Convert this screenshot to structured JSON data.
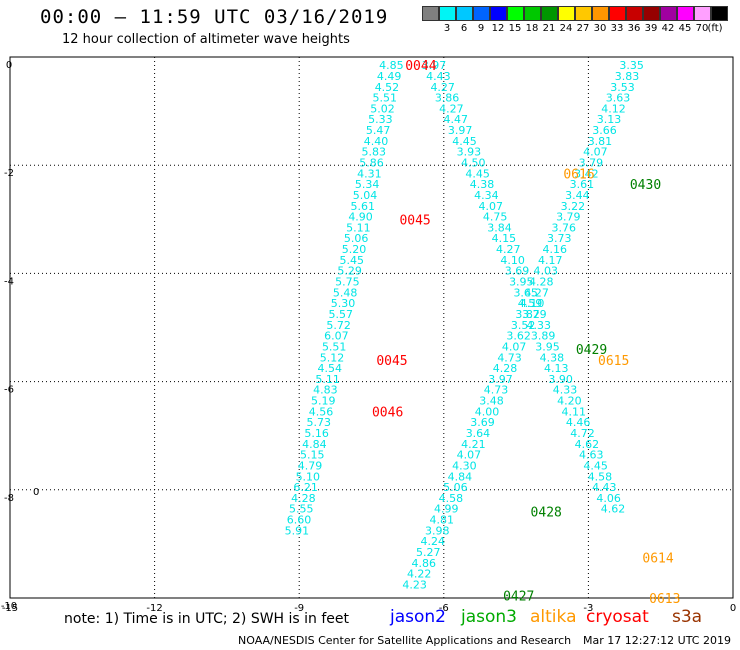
{
  "header": {
    "title": "00:00 — 11:59 UTC 03/16/2019",
    "subtitle": "12 hour collection of altimeter wave heights"
  },
  "legend": {
    "unit_label": "(ft)",
    "scale": [
      {
        "label": "",
        "color": "#808080"
      },
      {
        "label": "3",
        "color": "#00f5f5"
      },
      {
        "label": "6",
        "color": "#00c8ff"
      },
      {
        "label": "9",
        "color": "#0064ff"
      },
      {
        "label": "12",
        "color": "#0000ff"
      },
      {
        "label": "15",
        "color": "#00ff00"
      },
      {
        "label": "18",
        "color": "#00c800"
      },
      {
        "label": "21",
        "color": "#009600"
      },
      {
        "label": "24",
        "color": "#ffff00"
      },
      {
        "label": "27",
        "color": "#ffc800"
      },
      {
        "label": "30",
        "color": "#ff9600"
      },
      {
        "label": "33",
        "color": "#ff0000"
      },
      {
        "label": "36",
        "color": "#c80000"
      },
      {
        "label": "39",
        "color": "#960000"
      },
      {
        "label": "42",
        "color": "#a000a0"
      },
      {
        "label": "45",
        "color": "#ff00ff"
      },
      {
        "label": "70",
        "color": "#ffa0ff"
      },
      {
        "label": "",
        "color": "#000000"
      }
    ]
  },
  "footer": {
    "note": "note:  1) Time is in UTC; 2) SWH is in feet",
    "satellites": [
      {
        "name": "jason2",
        "color": "#0000ff"
      },
      {
        "name": "jason3",
        "color": "#00aa00"
      },
      {
        "name": "altika",
        "color": "#ff9900"
      },
      {
        "name": "cryosat",
        "color": "#ff0000"
      },
      {
        "name": "s3a",
        "color": "#993300"
      }
    ],
    "credit": "NOAA/NESDIS Center for Satellite Applications and Research",
    "timestamp": "Mar 17 12:27:12 UTC 2019"
  },
  "chart_data": {
    "type": "scatter",
    "title": "00:00 — 11:59 UTC 03/16/2019",
    "subtitle": "12 hour collection of altimeter wave heights",
    "xlim": [
      -15,
      0
    ],
    "ylim": [
      -10,
      0
    ],
    "x_ticks": [
      "-15",
      "-12",
      "-9",
      "-6",
      "-3",
      "0"
    ],
    "y_ticks": [
      "0",
      "-2",
      "-4",
      "-6",
      "-8",
      "-10"
    ],
    "grid": true,
    "value_color": "#00e5e5",
    "track_labels": [
      {
        "text": "0044",
        "x": -6.8,
        "y": -0.15,
        "sat": "cryosat",
        "color": "#ff0000"
      },
      {
        "text": "0045",
        "x": -6.92,
        "y": -3.0,
        "sat": "cryosat",
        "color": "#ff0000"
      },
      {
        "text": "0045",
        "x": -7.4,
        "y": -5.6,
        "sat": "cryosat",
        "color": "#ff0000"
      },
      {
        "text": "0046",
        "x": -7.49,
        "y": -6.55,
        "sat": "cryosat",
        "color": "#ff0000"
      },
      {
        "text": "0616",
        "x": -3.52,
        "y": -2.15,
        "sat": "altika",
        "color": "#ff9900"
      },
      {
        "text": "0615",
        "x": -2.8,
        "y": -5.6,
        "sat": "altika",
        "color": "#ff9900"
      },
      {
        "text": "0614",
        "x": -1.88,
        "y": -9.25,
        "sat": "altika",
        "color": "#ff9900"
      },
      {
        "text": "0613",
        "x": -1.74,
        "y": -10.0,
        "sat": "altika",
        "color": "#ff9900"
      },
      {
        "text": "0430",
        "x": -2.14,
        "y": -2.35,
        "sat": "jason3",
        "color": "#008000"
      },
      {
        "text": "0429",
        "x": -3.26,
        "y": -5.4,
        "sat": "jason3",
        "color": "#008000"
      },
      {
        "text": "0428",
        "x": -4.2,
        "y": -8.4,
        "sat": "jason3",
        "color": "#008000"
      },
      {
        "text": "0427",
        "x": -4.77,
        "y": -9.95,
        "sat": "jason3",
        "color": "#008000"
      }
    ],
    "tracks": [
      {
        "name": "cryosat 0044-0046",
        "y": [
          -0.15,
          -0.35,
          -0.55,
          -0.75,
          -0.95,
          -1.15,
          -1.35,
          -1.55,
          -1.75,
          -1.95,
          -2.15,
          -2.35,
          -2.55,
          -2.75,
          -2.95,
          -3.15,
          -3.35,
          -3.55,
          -3.75,
          -3.95,
          -4.15,
          -4.35,
          -4.55,
          -4.75,
          -4.95,
          -5.15,
          -5.35,
          -5.55,
          -5.75,
          -5.95,
          -6.15,
          -6.35,
          -6.55,
          -6.75,
          -6.95,
          -7.15,
          -7.35,
          -7.55,
          -7.75,
          -7.95,
          -8.15,
          -8.35,
          -8.55,
          -8.75,
          -8.95,
          -9.15,
          -9.35,
          -9.55,
          -9.75,
          -9.95
        ],
        "values": [
          "4.85",
          "4.49",
          "4.52",
          "5.51",
          "5.02",
          "5.33",
          "5.47",
          "4.40",
          "5.83",
          "5.86",
          "4.31",
          "5.34",
          "5.04",
          "5.61",
          "4.90",
          "5.11",
          "5.06",
          "5.20",
          "5.45",
          "5.29",
          "5.75",
          "5.48",
          "5.30",
          "5.57",
          "5.72",
          "6.07",
          "5.51",
          "5.12",
          "4.54",
          "5.11",
          "4.83",
          "5.19",
          "4.56",
          "5.73",
          "5.16",
          "4.84",
          "5.15",
          "4.79",
          "5.10",
          "6.21",
          "4.28",
          "5.55",
          "6.60",
          "5.91",
          "",
          "",
          "",
          "",
          "",
          ""
        ]
      },
      {
        "name": "altika 0616-0613",
        "y": [
          -0.15,
          -0.35,
          -0.55,
          -0.75,
          -0.95,
          -1.15,
          -1.35,
          -1.55,
          -1.75,
          -1.95,
          -2.15,
          -2.35,
          -2.55,
          -2.75,
          -2.95,
          -3.15,
          -3.35,
          -3.55,
          -3.75,
          -3.95,
          -4.15,
          -4.35,
          -4.55,
          -4.75,
          -4.95,
          -5.15,
          -5.35,
          -5.55,
          -5.75,
          -5.95,
          -6.15,
          -6.35,
          -6.55,
          -6.75,
          -6.95,
          -7.15,
          -7.35,
          -7.55,
          -7.75,
          -7.95,
          -8.15,
          -8.35,
          -8.55,
          -8.75,
          -8.95,
          -9.15,
          -9.35,
          -9.55,
          -9.75,
          -9.95
        ],
        "values": [
          "3.97",
          "4.43",
          "4.27",
          "3.86",
          "4.27",
          "4.47",
          "3.97",
          "4.45",
          "3.93",
          "4.50",
          "4.45",
          "4.38",
          "4.34",
          "4.07",
          "4.75",
          "3.84",
          "4.15",
          "4.27",
          "4.10",
          "3.69",
          "3.95",
          "3.65",
          "4.59",
          "3.79",
          "4.33",
          "3.89",
          "3.95",
          "4.38",
          "4.13",
          "3.90",
          "4.33",
          "4.20",
          "4.11",
          "4.46",
          "4.72",
          "4.62",
          "4.63",
          "4.45",
          "4.58",
          "4.43",
          "4.06",
          "4.62",
          "",
          "",
          "",
          "",
          "",
          "",
          "",
          ""
        ]
      },
      {
        "name": "jason3 0430-0427",
        "y": [
          -0.15,
          -0.35,
          -0.55,
          -0.75,
          -0.95,
          -1.15,
          -1.35,
          -1.55,
          -1.75,
          -1.95,
          -2.15,
          -2.35,
          -2.55,
          -2.75,
          -2.95,
          -3.15,
          -3.35,
          -3.55,
          -3.75,
          -3.95,
          -4.15,
          -4.35,
          -4.55,
          -4.75,
          -4.95,
          -5.15,
          -5.35,
          -5.55,
          -5.75,
          -5.95,
          -6.15,
          -6.35,
          -6.55,
          -6.75,
          -6.95,
          -7.15,
          -7.35,
          -7.55,
          -7.75,
          -7.95,
          -8.15,
          -8.35,
          -8.55,
          -8.75,
          -8.95,
          -9.15,
          -9.35,
          -9.55,
          -9.75,
          -9.95
        ],
        "values": [
          "3.35",
          "3.83",
          "3.53",
          "3.63",
          "4.12",
          "3.13",
          "3.66",
          "3.81",
          "4.07",
          "3.79",
          "3.42",
          "3.61",
          "3.44",
          "3.22",
          "3.79",
          "3.76",
          "3.73",
          "4.16",
          "4.17",
          "4.03",
          "4.28",
          "4.27",
          "4.10",
          "3.82",
          "3.52",
          "3.62",
          "4.07",
          "4.73",
          "4.28",
          "3.97",
          "4.73",
          "3.48",
          "4.00",
          "3.69",
          "3.64",
          "4.21",
          "4.07",
          "4.30",
          "4.84",
          "5.06",
          "4.58",
          "4.99",
          "4.81",
          "3.98",
          "4.24",
          "5.27",
          "4.86",
          "4.22",
          "4.23",
          ""
        ]
      }
    ]
  }
}
